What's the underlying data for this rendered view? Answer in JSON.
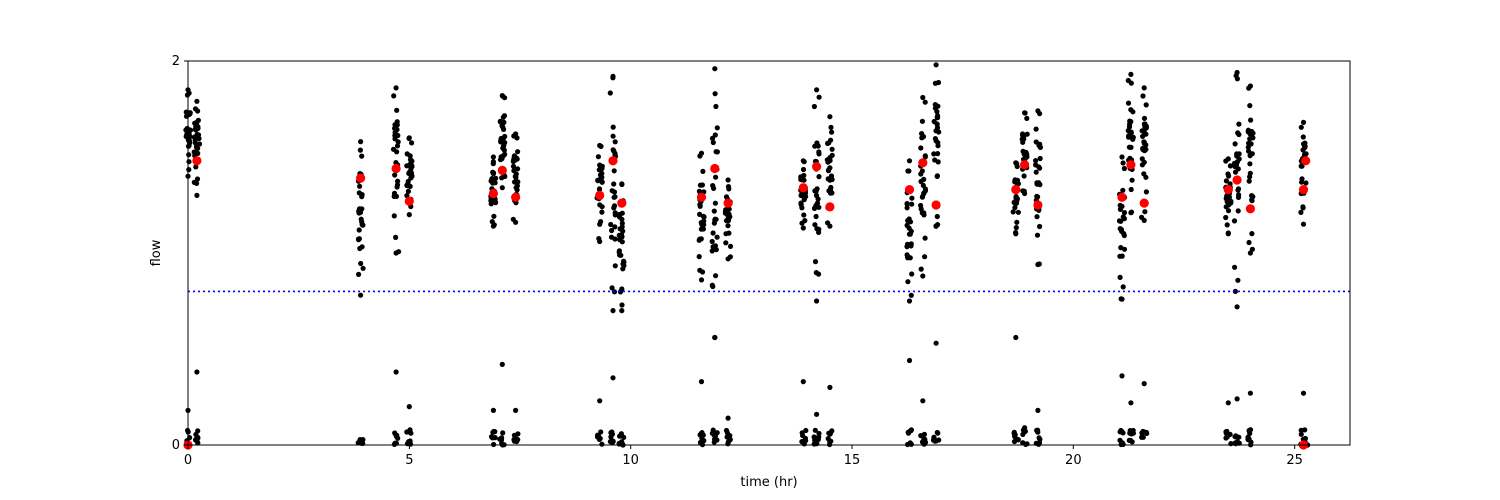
{
  "chart_data": {
    "type": "scatter",
    "title": "",
    "xlabel": "time (hr)",
    "ylabel": "flow",
    "xlim": [
      0,
      26.25
    ],
    "ylim": [
      0,
      2
    ],
    "xticks": [
      0,
      5,
      10,
      15,
      20,
      25
    ],
    "yticks": [
      0,
      2
    ],
    "grid": false,
    "legend": "none",
    "colors": {
      "points": "#000000",
      "means": "#ff0000",
      "threshold": "#0000ff"
    },
    "threshold": {
      "y": 0.8,
      "style": "dotted"
    },
    "clusters": [
      {
        "x": 0.0,
        "high_min": 1.4,
        "high_max": 1.85,
        "low_min": 0.0,
        "low_max": 0.18,
        "mean": 0.0
      },
      {
        "x": 0.2,
        "high_min": 1.3,
        "high_max": 1.79,
        "low_min": 0.0,
        "low_max": 0.38,
        "mean": 1.48
      },
      {
        "x": 3.9,
        "high_min": 0.78,
        "high_max": 1.58,
        "low_min": 0.0,
        "low_max": 0.03,
        "mean": 1.39
      },
      {
        "x": 4.7,
        "high_min": 1.0,
        "high_max": 1.86,
        "low_min": 0.0,
        "low_max": 0.38,
        "mean": 1.44
      },
      {
        "x": 5.0,
        "high_min": 1.2,
        "high_max": 1.6,
        "low_min": 0.0,
        "low_max": 0.2,
        "mean": 1.27
      },
      {
        "x": 6.9,
        "high_min": 1.14,
        "high_max": 1.5,
        "low_min": 0.0,
        "low_max": 0.18,
        "mean": 1.31
      },
      {
        "x": 7.1,
        "high_min": 1.34,
        "high_max": 1.82,
        "low_min": 0.0,
        "low_max": 0.42,
        "mean": 1.43
      },
      {
        "x": 7.4,
        "high_min": 1.16,
        "high_max": 1.62,
        "low_min": 0.0,
        "low_max": 0.18,
        "mean": 1.29
      },
      {
        "x": 9.3,
        "high_min": 1.06,
        "high_max": 1.56,
        "low_min": 0.0,
        "low_max": 0.23,
        "mean": 1.3
      },
      {
        "x": 9.6,
        "high_min": 0.7,
        "high_max": 1.92,
        "low_min": 0.0,
        "low_max": 0.35,
        "mean": 1.48
      },
      {
        "x": 9.8,
        "high_min": 0.7,
        "high_max": 1.36,
        "low_min": 0.0,
        "low_max": 0.08,
        "mean": 1.26
      },
      {
        "x": 11.6,
        "high_min": 0.86,
        "high_max": 1.52,
        "low_min": 0.0,
        "low_max": 0.33,
        "mean": 1.29
      },
      {
        "x": 11.9,
        "high_min": 0.56,
        "high_max": 1.96,
        "low_min": 0.0,
        "low_max": 0.56,
        "mean": 1.44
      },
      {
        "x": 12.2,
        "high_min": 0.97,
        "high_max": 1.38,
        "low_min": 0.0,
        "low_max": 0.14,
        "mean": 1.26
      },
      {
        "x": 13.9,
        "high_min": 1.13,
        "high_max": 1.48,
        "low_min": 0.0,
        "low_max": 0.33,
        "mean": 1.34
      },
      {
        "x": 14.2,
        "high_min": 0.75,
        "high_max": 1.85,
        "low_min": 0.0,
        "low_max": 0.16,
        "mean": 1.45
      },
      {
        "x": 14.5,
        "high_min": 1.14,
        "high_max": 1.71,
        "low_min": 0.0,
        "low_max": 0.3,
        "mean": 1.24
      },
      {
        "x": 16.3,
        "high_min": 0.75,
        "high_max": 1.48,
        "low_min": 0.0,
        "low_max": 0.44,
        "mean": 1.33
      },
      {
        "x": 16.6,
        "high_min": 0.88,
        "high_max": 1.81,
        "low_min": 0.0,
        "low_max": 0.23,
        "mean": 1.47
      },
      {
        "x": 16.9,
        "high_min": 1.14,
        "high_max": 1.98,
        "low_min": 0.0,
        "low_max": 0.53,
        "mean": 1.25
      },
      {
        "x": 18.7,
        "high_min": 1.1,
        "high_max": 1.47,
        "low_min": 0.0,
        "low_max": 0.56,
        "mean": 1.33
      },
      {
        "x": 18.9,
        "high_min": 1.31,
        "high_max": 1.73,
        "low_min": 0.0,
        "low_max": 0.09,
        "mean": 1.46
      },
      {
        "x": 19.2,
        "high_min": 0.94,
        "high_max": 1.74,
        "low_min": 0.0,
        "low_max": 0.18,
        "mean": 1.25
      },
      {
        "x": 21.1,
        "high_min": 0.76,
        "high_max": 1.5,
        "low_min": 0.0,
        "low_max": 0.36,
        "mean": 1.29
      },
      {
        "x": 21.3,
        "high_min": 1.21,
        "high_max": 1.93,
        "low_min": 0.0,
        "low_max": 0.22,
        "mean": 1.46
      },
      {
        "x": 21.6,
        "high_min": 1.17,
        "high_max": 1.86,
        "low_min": 0.0,
        "low_max": 0.32,
        "mean": 1.26
      },
      {
        "x": 23.5,
        "high_min": 1.1,
        "high_max": 1.49,
        "low_min": 0.0,
        "low_max": 0.22,
        "mean": 1.33
      },
      {
        "x": 23.7,
        "high_min": 0.72,
        "high_max": 1.94,
        "low_min": 0.0,
        "low_max": 0.24,
        "mean": 1.38
      },
      {
        "x": 24.0,
        "high_min": 1.0,
        "high_max": 1.87,
        "low_min": 0.0,
        "low_max": 0.27,
        "mean": 1.23
      },
      {
        "x": 25.2,
        "high_min": 1.15,
        "high_max": 1.68,
        "low_min": 0.0,
        "low_max": 0.27,
        "mean": 1.33
      },
      {
        "x": 25.25,
        "high_min": 1.42,
        "high_max": 1.42,
        "low_min": 0.0,
        "low_max": 0.0,
        "mean": 1.48
      },
      {
        "x": 25.2,
        "high_min": 0.0,
        "high_max": 0.0,
        "low_min": 0.0,
        "low_max": 0.0,
        "mean": 0.0
      }
    ]
  }
}
